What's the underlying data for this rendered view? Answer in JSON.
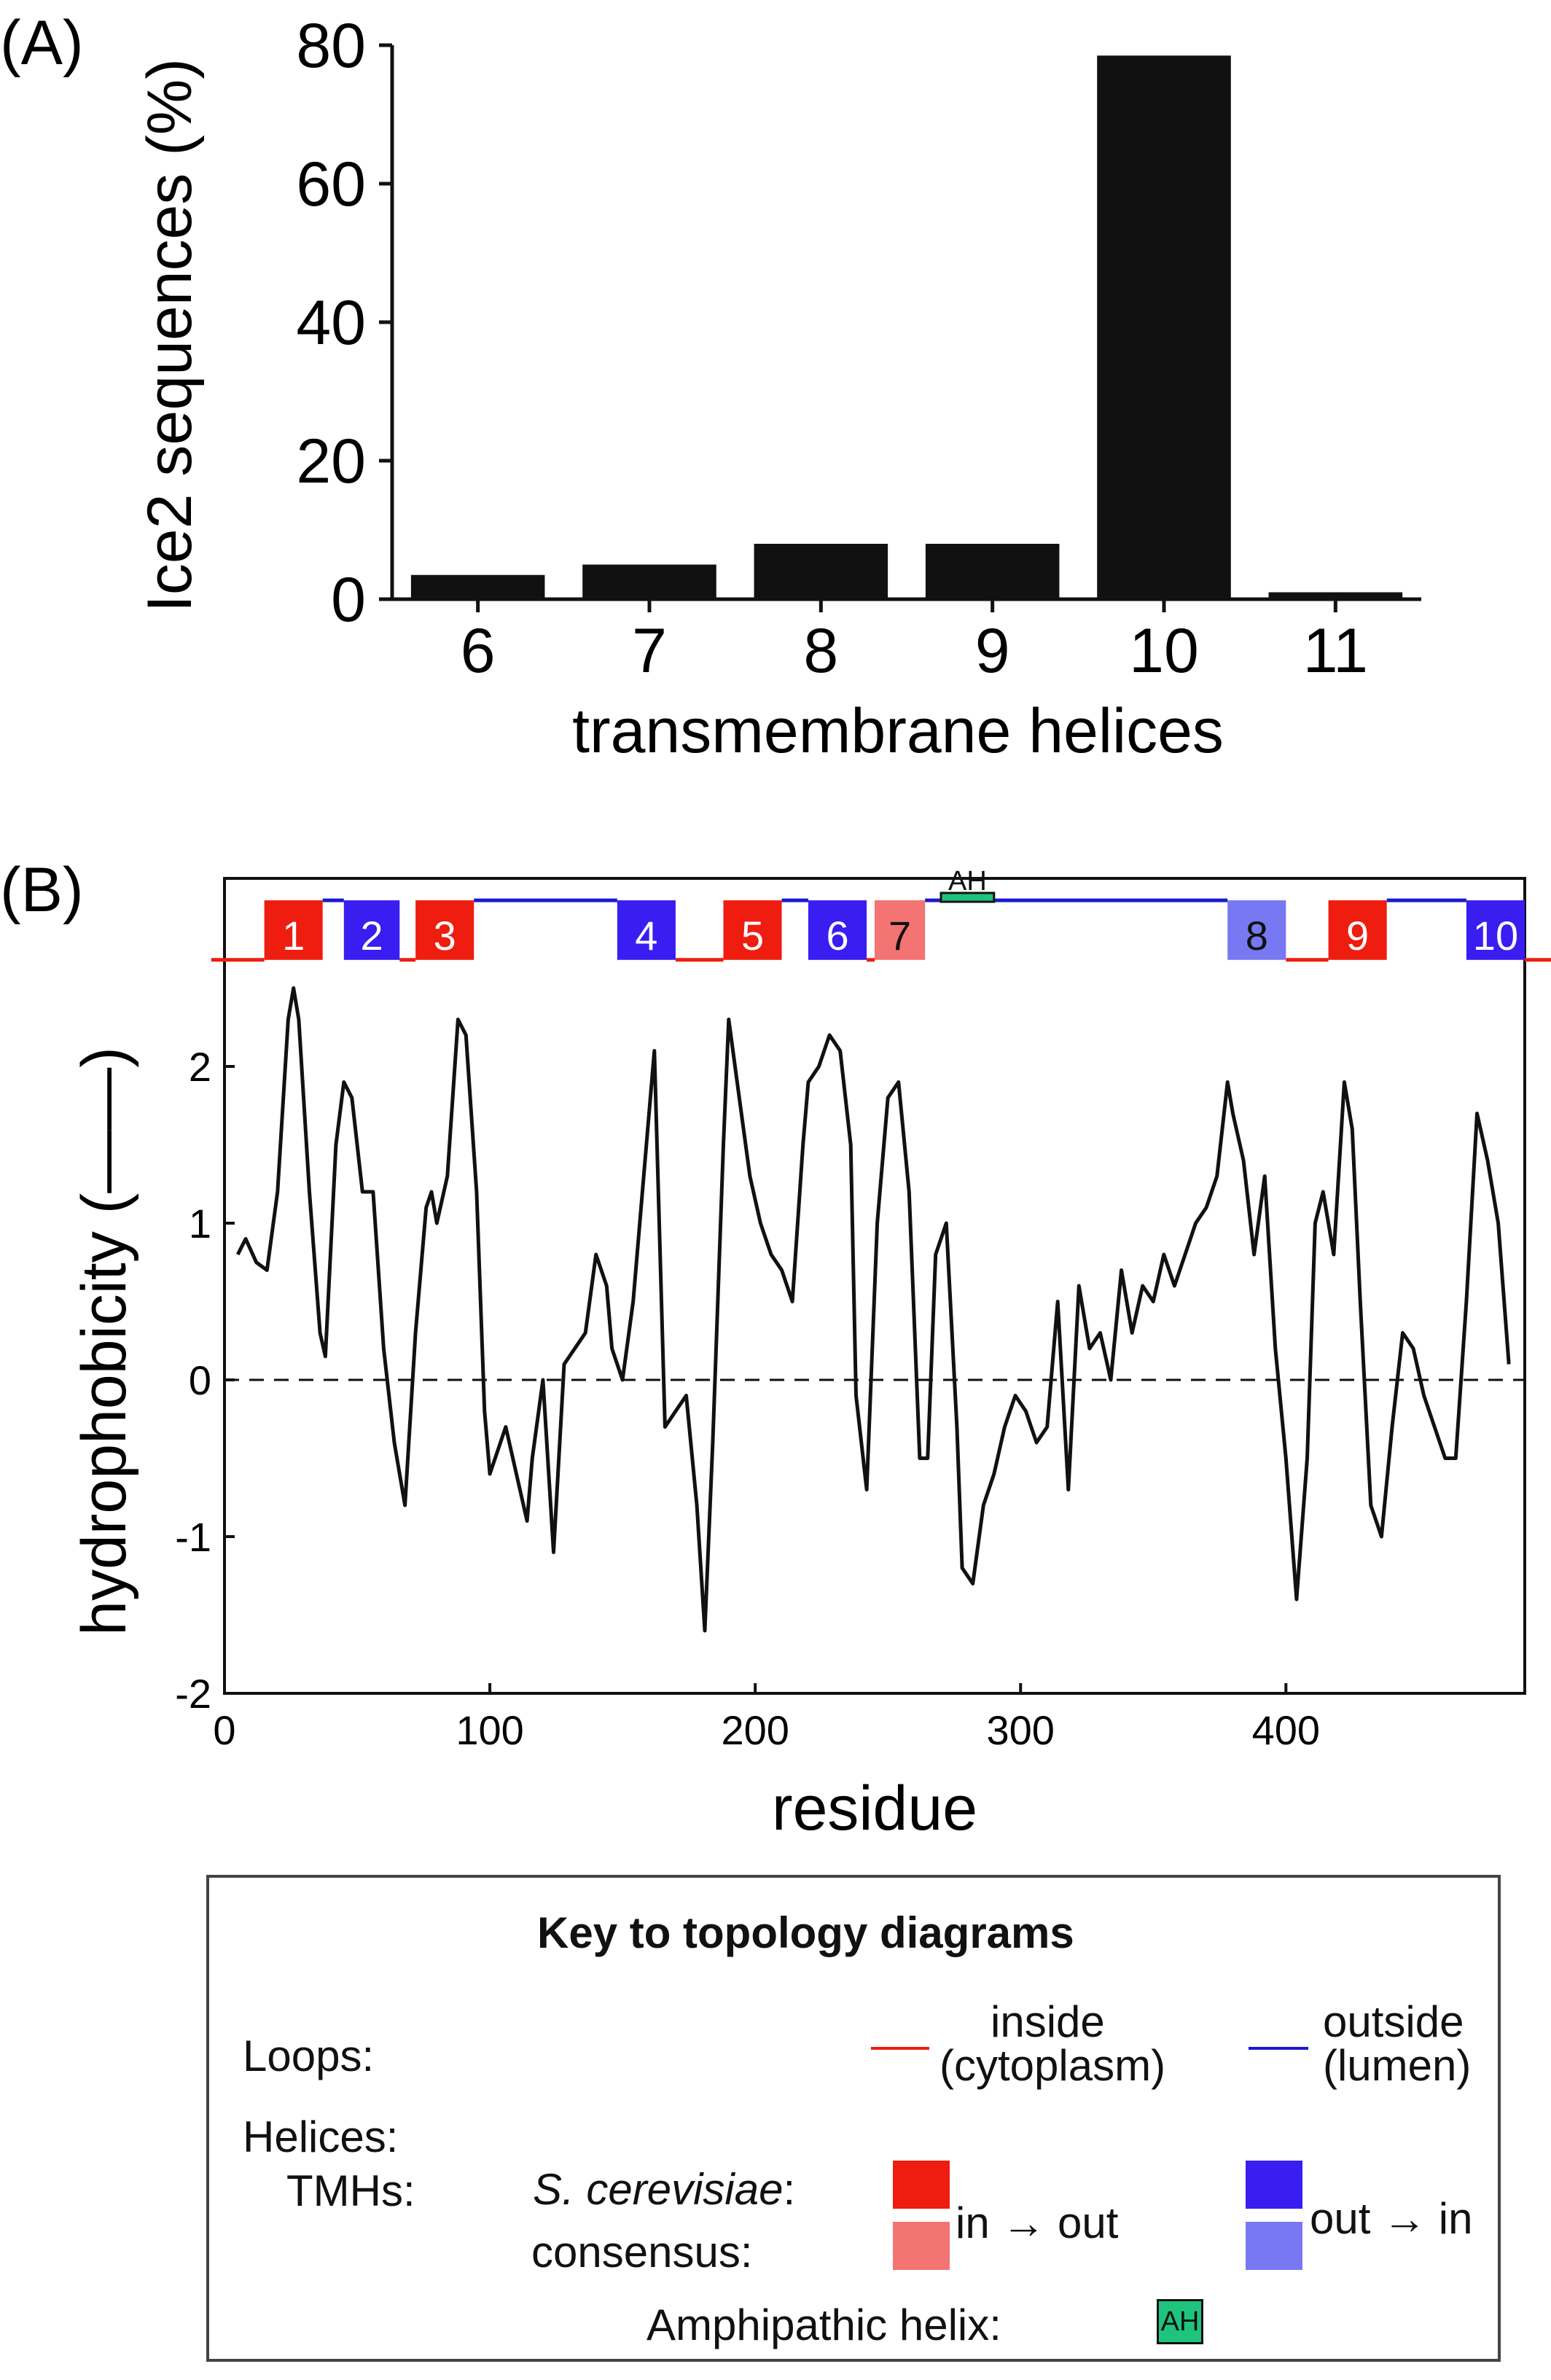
{
  "chart_data": [
    {
      "panel": "(A)",
      "type": "bar",
      "categories": [
        "6",
        "7",
        "8",
        "9",
        "10",
        "11"
      ],
      "values": [
        3.5,
        5,
        8,
        8,
        78.5,
        1
      ],
      "xlabel": "transmembrane helices",
      "ylabel": "Ice2 sequences (%)",
      "ylim": [
        0,
        80
      ],
      "yticks": [
        "0",
        "20",
        "40",
        "60",
        "80"
      ],
      "bar_color": "#111111",
      "grid": false
    },
    {
      "panel": "(B)",
      "type": "line",
      "xlabel": "residue",
      "ylabel": "hydrophobicity (——)",
      "xlim": [
        0,
        490
      ],
      "ylim": [
        -2,
        3.2
      ],
      "xticks": [
        "0",
        "100",
        "200",
        "300",
        "400"
      ],
      "yticks": [
        "-2",
        "-1",
        "0",
        "1",
        "2"
      ],
      "zero_line": "dashed",
      "line_color": "#111111",
      "x": [
        5,
        8,
        12,
        16,
        20,
        24,
        26,
        28,
        32,
        36,
        38,
        42,
        45,
        48,
        52,
        56,
        60,
        64,
        68,
        72,
        76,
        78,
        80,
        84,
        88,
        91,
        95,
        98,
        100,
        104,
        106,
        110,
        114,
        116,
        120,
        124,
        128,
        132,
        136,
        140,
        144,
        146,
        150,
        154,
        158,
        162,
        166,
        170,
        174,
        178,
        181,
        184,
        188,
        190,
        194,
        198,
        202,
        206,
        210,
        214,
        218,
        220,
        224,
        228,
        232,
        236,
        238,
        242,
        246,
        250,
        254,
        258,
        262,
        265,
        268,
        272,
        276,
        278,
        282,
        286,
        290,
        294,
        298,
        302,
        306,
        310,
        314,
        318,
        322,
        326,
        330,
        334,
        338,
        342,
        346,
        350,
        354,
        358,
        362,
        366,
        370,
        374,
        378,
        380,
        384,
        388,
        392,
        396,
        400,
        404,
        408,
        411,
        414,
        418,
        422,
        425,
        428,
        432,
        436,
        440,
        444,
        448,
        452,
        456,
        460,
        464,
        468,
        472,
        476,
        480,
        484
      ],
      "y": [
        0.8,
        0.9,
        0.75,
        0.7,
        1.2,
        2.3,
        2.5,
        2.3,
        1.2,
        0.3,
        0.15,
        1.5,
        1.9,
        1.8,
        1.2,
        1.2,
        0.2,
        -0.4,
        -0.8,
        0.3,
        1.1,
        1.2,
        1.0,
        1.3,
        2.3,
        2.2,
        1.2,
        -0.2,
        -0.6,
        -0.4,
        -0.3,
        -0.6,
        -0.9,
        -0.5,
        0.0,
        -1.1,
        0.1,
        0.2,
        0.3,
        0.8,
        0.6,
        0.2,
        0.0,
        0.5,
        1.3,
        2.1,
        -0.3,
        -0.2,
        -0.1,
        -0.8,
        -1.6,
        -0.4,
        1.5,
        2.3,
        1.8,
        1.3,
        1.0,
        0.8,
        0.7,
        0.5,
        1.5,
        1.9,
        2.0,
        2.2,
        2.1,
        1.5,
        -0.1,
        -0.7,
        1.0,
        1.8,
        1.9,
        1.2,
        -0.5,
        -0.5,
        0.8,
        1.0,
        -0.3,
        -1.2,
        -1.3,
        -0.8,
        -0.6,
        -0.3,
        -0.1,
        -0.2,
        -0.4,
        -0.3,
        0.5,
        -0.7,
        0.6,
        0.2,
        0.3,
        0.0,
        0.7,
        0.3,
        0.6,
        0.5,
        0.8,
        0.6,
        0.8,
        1.0,
        1.1,
        1.3,
        1.9,
        1.7,
        1.4,
        0.8,
        1.3,
        0.2,
        -0.5,
        -1.4,
        -0.5,
        1.0,
        1.2,
        0.8,
        1.9,
        1.6,
        0.5,
        -0.8,
        -1.0,
        -0.3,
        0.3,
        0.2,
        -0.1,
        -0.3,
        -0.5,
        -0.5,
        0.5,
        1.7,
        1.4,
        1.0,
        0.1
      ],
      "topology": {
        "helices": [
          {
            "label": "1",
            "start": 15,
            "end": 37,
            "kind": "in-out-sc"
          },
          {
            "label": "2",
            "start": 45,
            "end": 66,
            "kind": "out-in-sc"
          },
          {
            "label": "3",
            "start": 72,
            "end": 94,
            "kind": "in-out-sc"
          },
          {
            "label": "4",
            "start": 148,
            "end": 170,
            "kind": "out-in-sc"
          },
          {
            "label": "5",
            "start": 188,
            "end": 210,
            "kind": "in-out-sc"
          },
          {
            "label": "6",
            "start": 220,
            "end": 242,
            "kind": "out-in-sc"
          },
          {
            "label": "7",
            "start": 245,
            "end": 264,
            "kind": "in-out-consensus"
          },
          {
            "label": "8",
            "start": 378,
            "end": 400,
            "kind": "out-in-consensus"
          },
          {
            "label": "9",
            "start": 416,
            "end": 438,
            "kind": "in-out-sc"
          },
          {
            "label": "10",
            "start": 468,
            "end": 490,
            "kind": "out-in-sc"
          }
        ],
        "amphipathic_helix": {
          "label": "AH",
          "start": 270,
          "end": 290
        },
        "loops": [
          {
            "start": -5,
            "end": 15,
            "side": "inside"
          },
          {
            "start": 37,
            "end": 45,
            "side": "outside"
          },
          {
            "start": 66,
            "end": 72,
            "side": "inside"
          },
          {
            "start": 94,
            "end": 148,
            "side": "outside"
          },
          {
            "start": 170,
            "end": 188,
            "side": "inside"
          },
          {
            "start": 210,
            "end": 220,
            "side": "outside"
          },
          {
            "start": 242,
            "end": 245,
            "side": "inside"
          },
          {
            "start": 264,
            "end": 378,
            "side": "outside"
          },
          {
            "start": 400,
            "end": 416,
            "side": "inside"
          },
          {
            "start": 438,
            "end": 468,
            "side": "outside"
          },
          {
            "start": 490,
            "end": 505,
            "side": "inside"
          }
        ]
      }
    }
  ],
  "colors": {
    "in_out_sc": "#ee1d0f",
    "in_out_consensus": "#f47373",
    "out_in_sc": "#3a1df0",
    "out_in_consensus": "#7878f2",
    "loop_inside": "#ee1d0f",
    "loop_outside": "#1a1ad0",
    "amphipathic": "#1ec47e"
  },
  "legend": {
    "title": "Key to topology diagrams",
    "loops_label": "Loops:",
    "inside_label": "inside",
    "inside_sub": "(cytoplasm)",
    "outside_label": "outside",
    "outside_sub": "(lumen)",
    "helices_label": "Helices:",
    "tmhs_label": "TMHs:",
    "species_label": "S. cerevisiae",
    "species_colon": ":",
    "consensus_label": "consensus:",
    "in_out_label": "in → out",
    "out_in_label": "out → in",
    "amphipathic_label": "Amphipathic helix:",
    "ah_badge": "AH"
  }
}
